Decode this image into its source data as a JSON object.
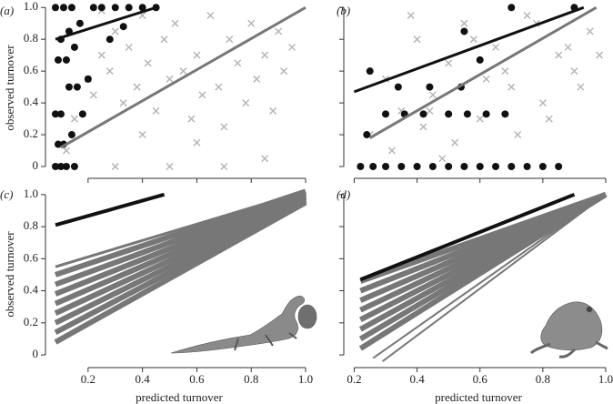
{
  "chart_data": [
    {
      "type": "scatter",
      "panel": "(a)",
      "ylabel": "observed turnover",
      "xlim": [
        0.07,
        1.0
      ],
      "ylim": [
        -0.04,
        1.03
      ],
      "xticks": [
        0.2,
        0.4,
        0.6,
        0.8,
        {
          "value": 1,
          "label": "1.0"
        }
      ],
      "xtick_labels": false,
      "yticks": [
        0,
        0.2,
        0.4,
        0.6,
        0.8,
        {
          "value": 1,
          "label": "1.0"
        }
      ],
      "ytick_labels": true,
      "series": [
        {
          "mode": "x",
          "color": "#b3b3b3",
          "x": [
            0.12,
            0.15,
            0.2,
            0.22,
            0.25,
            0.28,
            0.3,
            0.33,
            0.35,
            0.38,
            0.4,
            0.42,
            0.45,
            0.48,
            0.5,
            0.52,
            0.55,
            0.58,
            0.6,
            0.62,
            0.65,
            0.68,
            0.7,
            0.72,
            0.75,
            0.78,
            0.8,
            0.82,
            0.85,
            0.88,
            0.9,
            0.92,
            0.95,
            0.3,
            0.5,
            0.7,
            0.85,
            0.4,
            0.6,
            0.25
          ],
          "values": [
            0.1,
            0.3,
            0.55,
            0.45,
            0.7,
            0.6,
            0.85,
            0.4,
            0.75,
            0.5,
            0.95,
            0.65,
            0.35,
            0.8,
            0.55,
            0.9,
            0.6,
            0.3,
            0.7,
            0.45,
            0.95,
            0.5,
            0.25,
            0.8,
            0.65,
            0.4,
            0.9,
            0.55,
            0.7,
            0.35,
            0.85,
            0.6,
            0.75,
            0.0,
            0.0,
            0.0,
            0.05,
            0.2,
            0.15,
            0.98
          ]
        },
        {
          "mode": "o",
          "color": "#111111",
          "x": [
            0.08,
            0.1,
            0.12,
            0.15,
            0.09,
            0.11,
            0.14,
            0.18,
            0.08,
            0.1,
            0.13,
            0.16,
            0.2,
            0.09,
            0.12,
            0.15,
            0.1,
            0.13,
            0.17,
            0.22,
            0.25,
            0.3,
            0.35,
            0.4,
            0.45,
            0.28,
            0.33,
            0.08,
            0.11,
            0.14
          ],
          "values": [
            0,
            0,
            0,
            0,
            0.14,
            0.14,
            0.2,
            0.33,
            0.33,
            0.33,
            0.5,
            0.5,
            0.55,
            0.67,
            0.67,
            0.75,
            0.8,
            0.85,
            0.9,
            1,
            1,
            1,
            1,
            1,
            1,
            0.8,
            0.88,
            1,
            1,
            1
          ]
        },
        {
          "mode": "line",
          "color": "#777777",
          "width": 3,
          "x": [
            0.1,
            1.0
          ],
          "values": [
            0.12,
            1.0
          ]
        },
        {
          "mode": "line",
          "color": "#111111",
          "width": 3,
          "x": [
            0.08,
            0.45
          ],
          "values": [
            0.8,
            1.0
          ]
        }
      ]
    },
    {
      "type": "scatter",
      "panel": "(b)",
      "xlim": [
        0.19,
        1.0
      ],
      "ylim": [
        -0.04,
        1.03
      ],
      "xticks": [
        0.2,
        0.4,
        0.6,
        0.8,
        {
          "value": 1,
          "label": "1.0"
        }
      ],
      "xtick_labels": false,
      "yticks": [
        0,
        0.2,
        0.4,
        0.6,
        0.8,
        1
      ],
      "ytick_labels": false,
      "series": [
        {
          "mode": "x",
          "color": "#b3b3b3",
          "x": [
            0.25,
            0.3,
            0.35,
            0.4,
            0.45,
            0.5,
            0.55,
            0.6,
            0.65,
            0.7,
            0.75,
            0.8,
            0.85,
            0.9,
            0.95,
            0.32,
            0.42,
            0.52,
            0.62,
            0.72,
            0.82,
            0.92,
            0.38,
            0.48,
            0.58,
            0.68,
            0.78,
            0.88,
            0.98,
            0.44
          ],
          "values": [
            0.2,
            0.55,
            0.35,
            0.8,
            0.45,
            0.65,
            0.9,
            0.3,
            0.75,
            0.5,
            0.95,
            0.4,
            0.7,
            0.6,
            0.85,
            0.1,
            0.25,
            0.15,
            0.55,
            0.2,
            0.3,
            0.5,
            0.95,
            0.05,
            0.8,
            0.6,
            0.9,
            0.75,
            0.7,
            0.35
          ]
        },
        {
          "mode": "o",
          "color": "#111111",
          "x": [
            0.22,
            0.26,
            0.3,
            0.35,
            0.4,
            0.45,
            0.5,
            0.55,
            0.6,
            0.65,
            0.7,
            0.75,
            0.8,
            0.85,
            0.24,
            0.3,
            0.36,
            0.42,
            0.5,
            0.56,
            0.62,
            0.68,
            0.34,
            0.44,
            0.54,
            0.6,
            0.25,
            0.55,
            0.7,
            0.9
          ],
          "values": [
            0,
            0,
            0,
            0,
            0,
            0,
            0,
            0,
            0,
            0,
            0,
            0,
            0,
            0,
            0.2,
            0.33,
            0.33,
            0.33,
            0.33,
            0.33,
            0.33,
            0.33,
            0.5,
            0.5,
            0.5,
            0.67,
            0.6,
            0.85,
            1,
            1
          ]
        },
        {
          "mode": "line",
          "color": "#777777",
          "width": 3,
          "x": [
            0.25,
            0.97
          ],
          "values": [
            0.18,
            1.0
          ]
        },
        {
          "mode": "line",
          "color": "#111111",
          "width": 3,
          "x": [
            0.2,
            0.93
          ],
          "values": [
            0.47,
            1.0
          ]
        }
      ]
    },
    {
      "type": "scatter",
      "panel": "(c)",
      "ylabel": "observed turnover",
      "xlabel": "predicted turnover",
      "xlim": [
        0.07,
        1.0
      ],
      "ylim": [
        -0.045,
        1.05
      ],
      "xticks": [
        0.2,
        0.4,
        0.6,
        0.8,
        {
          "value": 1,
          "label": "1.0"
        }
      ],
      "xtick_labels": true,
      "yticks": [
        0,
        0.2,
        0.4,
        0.6,
        0.8,
        {
          "value": 1,
          "label": "1.0"
        }
      ],
      "ytick_labels": true,
      "series": [
        {
          "mode": "line",
          "color": "#777777",
          "width": 6,
          "x": [
            0.08,
            1.0
          ],
          "values": [
            0.08,
            0.95
          ]
        },
        {
          "mode": "line",
          "color": "#777777",
          "width": 6,
          "x": [
            0.08,
            1.0
          ],
          "values": [
            0.14,
            0.96
          ]
        },
        {
          "mode": "line",
          "color": "#777777",
          "width": 6,
          "x": [
            0.08,
            1.0
          ],
          "values": [
            0.2,
            0.97
          ]
        },
        {
          "mode": "line",
          "color": "#777777",
          "width": 6,
          "x": [
            0.08,
            1.0
          ],
          "values": [
            0.26,
            0.98
          ]
        },
        {
          "mode": "line",
          "color": "#777777",
          "width": 6,
          "x": [
            0.08,
            1.0
          ],
          "values": [
            0.32,
            0.99
          ]
        },
        {
          "mode": "line",
          "color": "#777777",
          "width": 6,
          "x": [
            0.08,
            1.0
          ],
          "values": [
            0.38,
            1.0
          ]
        },
        {
          "mode": "line",
          "color": "#777777",
          "width": 6,
          "x": [
            0.08,
            1.0
          ],
          "values": [
            0.44,
            1.01
          ]
        },
        {
          "mode": "line",
          "color": "#777777",
          "width": 6,
          "x": [
            0.08,
            1.0
          ],
          "values": [
            0.5,
            1.02
          ]
        },
        {
          "mode": "line",
          "color": "#777777",
          "width": 3,
          "x": [
            0.08,
            1.0
          ],
          "values": [
            0.55,
            1.02
          ]
        },
        {
          "mode": "line",
          "color": "#111111",
          "width": 4,
          "x": [
            0.08,
            0.48
          ],
          "values": [
            0.81,
            1.0
          ]
        }
      ]
    },
    {
      "type": "scatter",
      "panel": "(d)",
      "xlabel": "predicted turnover",
      "xlim": [
        0.19,
        1.0
      ],
      "ylim": [
        -0.045,
        1.05
      ],
      "xticks": [
        0.2,
        0.4,
        0.6,
        0.8,
        {
          "value": 1,
          "label": "1.0"
        }
      ],
      "xtick_labels": true,
      "yticks": [
        0,
        0.2,
        0.4,
        0.6,
        0.8,
        1
      ],
      "ytick_labels": false,
      "series": [
        {
          "mode": "line",
          "color": "#777777",
          "width": 2,
          "x": [
            0.29,
            1.0
          ],
          "values": [
            -0.04,
            1.0
          ]
        },
        {
          "mode": "line",
          "color": "#777777",
          "width": 2,
          "x": [
            0.26,
            1.0
          ],
          "values": [
            -0.02,
            1.0
          ]
        },
        {
          "mode": "line",
          "color": "#777777",
          "width": 6,
          "x": [
            0.22,
            1.0
          ],
          "values": [
            0.04,
            1.0
          ]
        },
        {
          "mode": "line",
          "color": "#777777",
          "width": 6,
          "x": [
            0.22,
            1.0
          ],
          "values": [
            0.1,
            1.0
          ]
        },
        {
          "mode": "line",
          "color": "#777777",
          "width": 6,
          "x": [
            0.22,
            1.0
          ],
          "values": [
            0.16,
            1.0
          ]
        },
        {
          "mode": "line",
          "color": "#777777",
          "width": 6,
          "x": [
            0.22,
            1.0
          ],
          "values": [
            0.22,
            1.0
          ]
        },
        {
          "mode": "line",
          "color": "#777777",
          "width": 6,
          "x": [
            0.22,
            1.0
          ],
          "values": [
            0.28,
            1.0
          ]
        },
        {
          "mode": "line",
          "color": "#777777",
          "width": 6,
          "x": [
            0.22,
            1.0
          ],
          "values": [
            0.34,
            1.0
          ]
        },
        {
          "mode": "line",
          "color": "#777777",
          "width": 6,
          "x": [
            0.22,
            1.0
          ],
          "values": [
            0.4,
            1.0
          ]
        },
        {
          "mode": "line",
          "color": "#777777",
          "width": 6,
          "x": [
            0.22,
            1.0
          ],
          "values": [
            0.46,
            1.0
          ]
        },
        {
          "mode": "line",
          "color": "#111111",
          "width": 4,
          "x": [
            0.22,
            0.9
          ],
          "values": [
            0.47,
            1.0
          ]
        }
      ]
    }
  ]
}
